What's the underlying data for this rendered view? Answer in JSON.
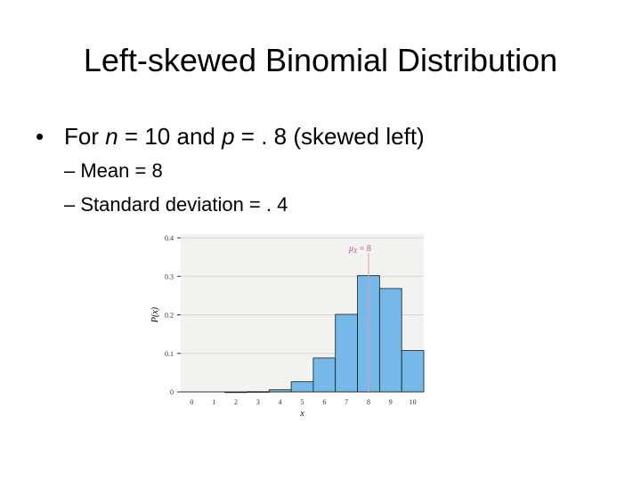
{
  "slide": {
    "title": "Left-skewed Binomial Distribution",
    "bullet": {
      "prefix": "For ",
      "n_var": "n",
      "n_text": " = 10 and ",
      "p_var": "p",
      "p_text": " = . 8 (skewed left)"
    },
    "sub_bullets": [
      "– Mean = 8",
      "– Standard deviation = . 4"
    ]
  },
  "chart_data": {
    "type": "bar",
    "x": [
      0,
      1,
      2,
      3,
      4,
      5,
      6,
      7,
      8,
      9,
      10
    ],
    "tick_labels_x": [
      "0",
      "1",
      "2",
      "3",
      "4",
      "5",
      "6",
      "7",
      "8",
      "9",
      "10"
    ],
    "values": [
      0.0,
      0.0,
      0.0001,
      0.0008,
      0.0055,
      0.0264,
      0.0881,
      0.2013,
      0.302,
      0.2684,
      0.1074
    ],
    "xlabel": "x",
    "ylabel": "P(x)",
    "ylim": [
      0,
      0.4
    ],
    "yticks": [
      0,
      0.1,
      0.2,
      0.3,
      0.4
    ],
    "tick_labels_y": [
      "0",
      "0.1",
      "0.2",
      "0.3",
      "0.4"
    ],
    "grid": true,
    "annotation": {
      "text_var": "μ",
      "text_sub": "X",
      "text_eq": " = 8",
      "x": 8
    },
    "colors": {
      "bar_fill": "#74b9e7",
      "bar_stroke": "#1a1a1a",
      "background": "#f2f2f0",
      "mean_line": "#e895b0",
      "grid": "#d8d8d4"
    }
  }
}
